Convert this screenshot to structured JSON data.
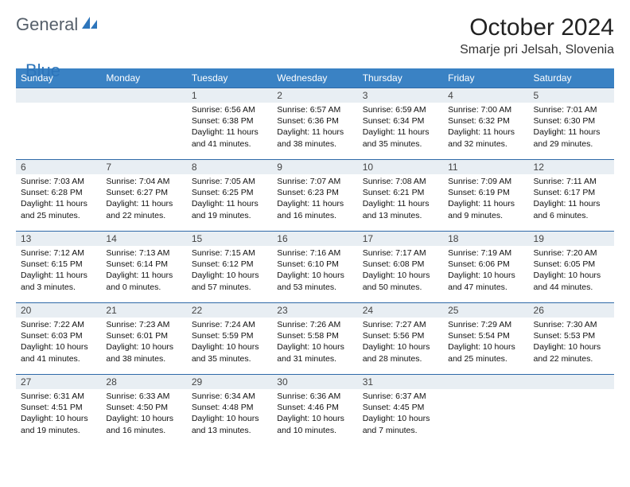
{
  "brand": {
    "word1": "General",
    "word2": "Blue"
  },
  "title": "October 2024",
  "location": "Smarje pri Jelsah, Slovenia",
  "colors": {
    "header_bg": "#3a82c4",
    "daynum_bg": "#e8eef3",
    "row_border": "#2f6aa8",
    "brand_gray": "#555f6a",
    "brand_blue": "#2d75bb"
  },
  "weekdays": [
    "Sunday",
    "Monday",
    "Tuesday",
    "Wednesday",
    "Thursday",
    "Friday",
    "Saturday"
  ],
  "weeks": [
    [
      null,
      null,
      {
        "n": "1",
        "sr": "Sunrise: 6:56 AM",
        "ss": "Sunset: 6:38 PM",
        "d1": "Daylight: 11 hours",
        "d2": "and 41 minutes."
      },
      {
        "n": "2",
        "sr": "Sunrise: 6:57 AM",
        "ss": "Sunset: 6:36 PM",
        "d1": "Daylight: 11 hours",
        "d2": "and 38 minutes."
      },
      {
        "n": "3",
        "sr": "Sunrise: 6:59 AM",
        "ss": "Sunset: 6:34 PM",
        "d1": "Daylight: 11 hours",
        "d2": "and 35 minutes."
      },
      {
        "n": "4",
        "sr": "Sunrise: 7:00 AM",
        "ss": "Sunset: 6:32 PM",
        "d1": "Daylight: 11 hours",
        "d2": "and 32 minutes."
      },
      {
        "n": "5",
        "sr": "Sunrise: 7:01 AM",
        "ss": "Sunset: 6:30 PM",
        "d1": "Daylight: 11 hours",
        "d2": "and 29 minutes."
      }
    ],
    [
      {
        "n": "6",
        "sr": "Sunrise: 7:03 AM",
        "ss": "Sunset: 6:28 PM",
        "d1": "Daylight: 11 hours",
        "d2": "and 25 minutes."
      },
      {
        "n": "7",
        "sr": "Sunrise: 7:04 AM",
        "ss": "Sunset: 6:27 PM",
        "d1": "Daylight: 11 hours",
        "d2": "and 22 minutes."
      },
      {
        "n": "8",
        "sr": "Sunrise: 7:05 AM",
        "ss": "Sunset: 6:25 PM",
        "d1": "Daylight: 11 hours",
        "d2": "and 19 minutes."
      },
      {
        "n": "9",
        "sr": "Sunrise: 7:07 AM",
        "ss": "Sunset: 6:23 PM",
        "d1": "Daylight: 11 hours",
        "d2": "and 16 minutes."
      },
      {
        "n": "10",
        "sr": "Sunrise: 7:08 AM",
        "ss": "Sunset: 6:21 PM",
        "d1": "Daylight: 11 hours",
        "d2": "and 13 minutes."
      },
      {
        "n": "11",
        "sr": "Sunrise: 7:09 AM",
        "ss": "Sunset: 6:19 PM",
        "d1": "Daylight: 11 hours",
        "d2": "and 9 minutes."
      },
      {
        "n": "12",
        "sr": "Sunrise: 7:11 AM",
        "ss": "Sunset: 6:17 PM",
        "d1": "Daylight: 11 hours",
        "d2": "and 6 minutes."
      }
    ],
    [
      {
        "n": "13",
        "sr": "Sunrise: 7:12 AM",
        "ss": "Sunset: 6:15 PM",
        "d1": "Daylight: 11 hours",
        "d2": "and 3 minutes."
      },
      {
        "n": "14",
        "sr": "Sunrise: 7:13 AM",
        "ss": "Sunset: 6:14 PM",
        "d1": "Daylight: 11 hours",
        "d2": "and 0 minutes."
      },
      {
        "n": "15",
        "sr": "Sunrise: 7:15 AM",
        "ss": "Sunset: 6:12 PM",
        "d1": "Daylight: 10 hours",
        "d2": "and 57 minutes."
      },
      {
        "n": "16",
        "sr": "Sunrise: 7:16 AM",
        "ss": "Sunset: 6:10 PM",
        "d1": "Daylight: 10 hours",
        "d2": "and 53 minutes."
      },
      {
        "n": "17",
        "sr": "Sunrise: 7:17 AM",
        "ss": "Sunset: 6:08 PM",
        "d1": "Daylight: 10 hours",
        "d2": "and 50 minutes."
      },
      {
        "n": "18",
        "sr": "Sunrise: 7:19 AM",
        "ss": "Sunset: 6:06 PM",
        "d1": "Daylight: 10 hours",
        "d2": "and 47 minutes."
      },
      {
        "n": "19",
        "sr": "Sunrise: 7:20 AM",
        "ss": "Sunset: 6:05 PM",
        "d1": "Daylight: 10 hours",
        "d2": "and 44 minutes."
      }
    ],
    [
      {
        "n": "20",
        "sr": "Sunrise: 7:22 AM",
        "ss": "Sunset: 6:03 PM",
        "d1": "Daylight: 10 hours",
        "d2": "and 41 minutes."
      },
      {
        "n": "21",
        "sr": "Sunrise: 7:23 AM",
        "ss": "Sunset: 6:01 PM",
        "d1": "Daylight: 10 hours",
        "d2": "and 38 minutes."
      },
      {
        "n": "22",
        "sr": "Sunrise: 7:24 AM",
        "ss": "Sunset: 5:59 PM",
        "d1": "Daylight: 10 hours",
        "d2": "and 35 minutes."
      },
      {
        "n": "23",
        "sr": "Sunrise: 7:26 AM",
        "ss": "Sunset: 5:58 PM",
        "d1": "Daylight: 10 hours",
        "d2": "and 31 minutes."
      },
      {
        "n": "24",
        "sr": "Sunrise: 7:27 AM",
        "ss": "Sunset: 5:56 PM",
        "d1": "Daylight: 10 hours",
        "d2": "and 28 minutes."
      },
      {
        "n": "25",
        "sr": "Sunrise: 7:29 AM",
        "ss": "Sunset: 5:54 PM",
        "d1": "Daylight: 10 hours",
        "d2": "and 25 minutes."
      },
      {
        "n": "26",
        "sr": "Sunrise: 7:30 AM",
        "ss": "Sunset: 5:53 PM",
        "d1": "Daylight: 10 hours",
        "d2": "and 22 minutes."
      }
    ],
    [
      {
        "n": "27",
        "sr": "Sunrise: 6:31 AM",
        "ss": "Sunset: 4:51 PM",
        "d1": "Daylight: 10 hours",
        "d2": "and 19 minutes."
      },
      {
        "n": "28",
        "sr": "Sunrise: 6:33 AM",
        "ss": "Sunset: 4:50 PM",
        "d1": "Daylight: 10 hours",
        "d2": "and 16 minutes."
      },
      {
        "n": "29",
        "sr": "Sunrise: 6:34 AM",
        "ss": "Sunset: 4:48 PM",
        "d1": "Daylight: 10 hours",
        "d2": "and 13 minutes."
      },
      {
        "n": "30",
        "sr": "Sunrise: 6:36 AM",
        "ss": "Sunset: 4:46 PM",
        "d1": "Daylight: 10 hours",
        "d2": "and 10 minutes."
      },
      {
        "n": "31",
        "sr": "Sunrise: 6:37 AM",
        "ss": "Sunset: 4:45 PM",
        "d1": "Daylight: 10 hours",
        "d2": "and 7 minutes."
      },
      null,
      null
    ]
  ]
}
